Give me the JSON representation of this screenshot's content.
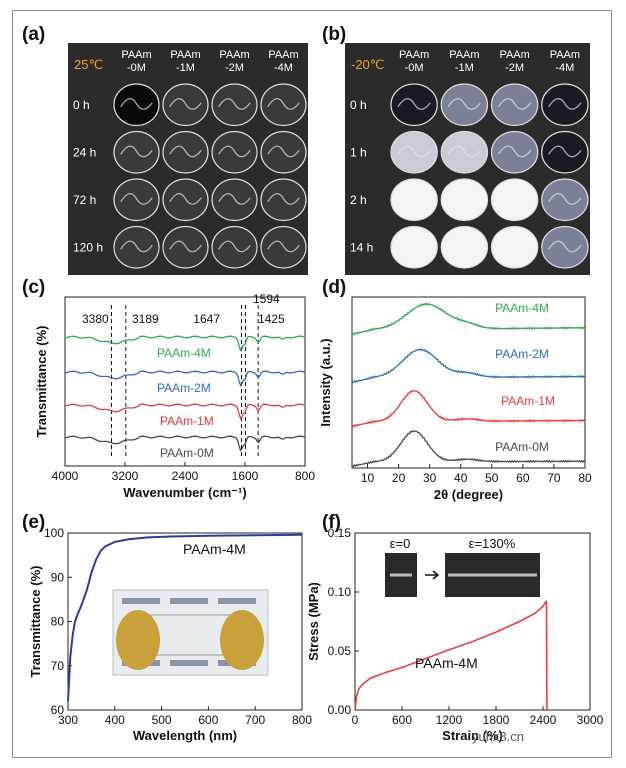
{
  "panel_labels": [
    "(a)",
    "(b)",
    "(c)",
    "(d)",
    "(e)",
    "(f)"
  ],
  "panel_a": {
    "temperature": "25℃",
    "column_headers": [
      [
        "PAAm",
        "-0M"
      ],
      [
        "PAAm",
        "-1M"
      ],
      [
        "PAAm",
        "-2M"
      ],
      [
        "PAAm",
        "-4M"
      ]
    ],
    "row_labels": [
      "0 h",
      "24 h",
      "72 h",
      "120 h"
    ]
  },
  "panel_b": {
    "temperature": "-20℃",
    "column_headers": [
      [
        "PAAm",
        "-0M"
      ],
      [
        "PAAm",
        "-1M"
      ],
      [
        "PAAm",
        "-2M"
      ],
      [
        "PAAm",
        "-4M"
      ]
    ],
    "row_labels": [
      "0 h",
      "1 h",
      "2 h",
      "14 h"
    ]
  },
  "watermark": "yuhx8.cn",
  "colors": {
    "accent_temp": "#f0a020",
    "photo_bg": "#2b2b2b",
    "green": "#2fa84f",
    "blue": "#2f6db5",
    "red": "#e23a3a",
    "gray": "#4a4a4a",
    "navy": "#2a3d9a",
    "red_f": "#e8403a"
  },
  "chart_data": [
    {
      "id": "c",
      "type": "line",
      "xlabel": "Wavenumber (cm⁻¹)",
      "ylabel": "Transmittance (%)",
      "xlim": [
        4000,
        800
      ],
      "xticks": [
        4000,
        3200,
        2400,
        1600,
        800
      ],
      "peak_markers": [
        3380,
        3189,
        1647,
        1594,
        1425
      ],
      "peak_labels": [
        "3380",
        "3189",
        "1647",
        "1594",
        "1425"
      ],
      "series": [
        {
          "name": "PAAm-4M",
          "color": "green",
          "offset": 3
        },
        {
          "name": "PAAm-2M",
          "color": "blue",
          "offset": 2
        },
        {
          "name": "PAAm-1M",
          "color": "red",
          "offset": 1
        },
        {
          "name": "PAAm-0M",
          "color": "gray",
          "offset": 0
        }
      ]
    },
    {
      "id": "d",
      "type": "line",
      "xlabel": "2θ (degree)",
      "ylabel": "Intensity (a.u.)",
      "xlim": [
        5,
        80
      ],
      "xticks": [
        10,
        20,
        30,
        40,
        50,
        60,
        70,
        80
      ],
      "series": [
        {
          "name": "PAAm-4M",
          "color": "green",
          "offset": 3,
          "peak_center": 29,
          "peak_width": 9,
          "peak_height": 0.9,
          "base_left": 0.0,
          "base_right": 0.15
        },
        {
          "name": "PAAm-2M",
          "color": "blue",
          "offset": 2,
          "peak_center": 27,
          "peak_width": 8,
          "peak_height": 1.0,
          "base_left": 0.0,
          "base_right": 0.1
        },
        {
          "name": "PAAm-1M",
          "color": "red",
          "offset": 1,
          "peak_center": 25,
          "peak_width": 6,
          "peak_height": 1.1,
          "base_left": 0.0,
          "base_right": 0.1
        },
        {
          "name": "PAAm-0M",
          "color": "gray",
          "offset": 0,
          "peak_center": 25,
          "peak_width": 6,
          "peak_height": 1.1,
          "base_left": 0.0,
          "base_right": 0.05
        }
      ]
    },
    {
      "id": "e",
      "type": "line",
      "xlabel": "Wavelength (nm)",
      "ylabel": "Transmittance (%)",
      "xlim": [
        300,
        800
      ],
      "ylim": [
        60,
        100
      ],
      "xticks": [
        300,
        400,
        500,
        600,
        700,
        800
      ],
      "yticks": [
        60,
        70,
        80,
        90,
        100
      ],
      "series": [
        {
          "name": "PAAm-4M",
          "color": "navy",
          "x": [
            300,
            305,
            310,
            315,
            320,
            330,
            340,
            350,
            360,
            370,
            380,
            400,
            430,
            470,
            520,
            600,
            700,
            800
          ],
          "y": [
            62,
            72,
            77,
            80,
            81.5,
            84,
            87,
            91,
            94,
            96,
            97,
            98,
            98.6,
            99,
            99.2,
            99.4,
            99.5,
            99.6
          ]
        }
      ],
      "label": "PAAm-4M"
    },
    {
      "id": "f",
      "type": "line",
      "xlabel": "Strain (%)",
      "ylabel": "Stress (MPa)",
      "xlim": [
        0,
        3000
      ],
      "ylim": [
        0,
        0.15
      ],
      "xticks": [
        0,
        600,
        1200,
        1800,
        2400,
        3000
      ],
      "xtick_labels": [
        "0",
        "600",
        "1200",
        "1800",
        "2400",
        "3000"
      ],
      "yticks": [
        0,
        0.05,
        0.1,
        0.15
      ],
      "ytick_labels": [
        "0.00",
        "0.05",
        "0.10",
        "0.15"
      ],
      "series": [
        {
          "name": "PAAm-4M",
          "color": "red_f",
          "x": [
            0,
            20,
            50,
            100,
            200,
            400,
            600,
            800,
            1000,
            1200,
            1500,
            1800,
            2100,
            2300,
            2400,
            2440,
            2445,
            2450
          ],
          "y": [
            0,
            0.012,
            0.018,
            0.022,
            0.027,
            0.032,
            0.036,
            0.041,
            0.046,
            0.051,
            0.058,
            0.066,
            0.075,
            0.082,
            0.088,
            0.092,
            0.091,
            0.0
          ]
        }
      ],
      "label": "PAAm-4M",
      "inset_labels": [
        "ε=0",
        "ε=130%"
      ]
    }
  ]
}
